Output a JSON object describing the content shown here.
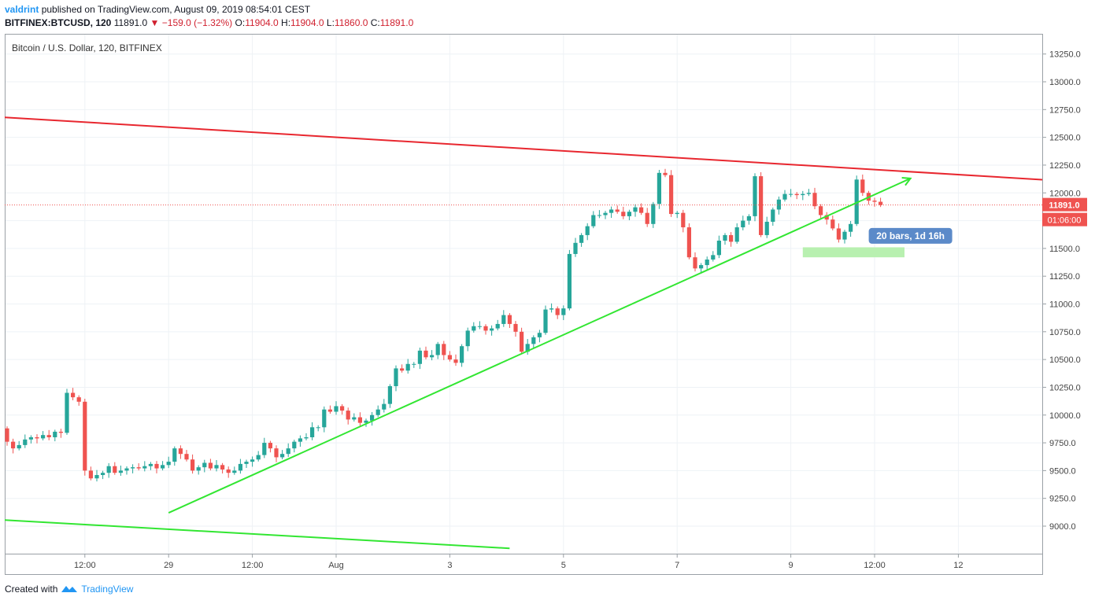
{
  "header": {
    "author": "valdrint",
    "published_text": "published on TradingView.com, August 09, 2019 08:54:01 CEST",
    "symbol": "BITFINEX:BTCUSD, 120",
    "last_price": "11891.0",
    "change": "−159.0 (−1.32%)",
    "o_label": "O:",
    "o_value": "11904.0",
    "h_label": "H:",
    "h_value": "11904.0",
    "l_label": "L:",
    "l_value": "11860.0",
    "c_label": "C:",
    "c_value": "11891.0"
  },
  "chart_data": {
    "type": "candlestick",
    "title": "Bitcoin / U.S. Dollar, 120, BITFINEX",
    "interval": "120",
    "ylim": [
      8800,
      13450
    ],
    "y_ticks": [
      9000,
      9250,
      9500,
      9750,
      10000,
      10250,
      10500,
      10750,
      11000,
      11250,
      11500,
      11750,
      12000,
      12250,
      12500,
      12750,
      13000,
      13250
    ],
    "y_tick_labels": [
      "9000.0",
      "9250.0",
      "9500.0",
      "9750.0",
      "10000.0",
      "10250.0",
      "10500.0",
      "10750.0",
      "11000.0",
      "11250.0",
      "11500.0",
      "11750.0",
      "12000.0",
      "12250.0",
      "12500.0",
      "12750.0",
      "13000.0",
      "13250.0"
    ],
    "x_tick_labels": [
      "12:00",
      "29",
      "12:00",
      "Aug",
      "3",
      "5",
      "7",
      "9",
      "12:00",
      "12"
    ],
    "x_tick_bars": [
      13,
      27,
      41,
      55,
      74,
      93,
      112,
      131,
      145,
      159
    ],
    "total_bar_slots": 165,
    "candle_closes": [
      9760,
      9700,
      9730,
      9780,
      9800,
      9790,
      9820,
      9800,
      9850,
      9840,
      10200,
      10160,
      10120,
      9500,
      9430,
      9460,
      9480,
      9540,
      9480,
      9500,
      9520,
      9530,
      9520,
      9540,
      9560,
      9520,
      9550,
      9580,
      9700,
      9650,
      9600,
      9500,
      9530,
      9570,
      9520,
      9550,
      9510,
      9480,
      9500,
      9560,
      9580,
      9600,
      9640,
      9750,
      9700,
      9620,
      9650,
      9700,
      9760,
      9790,
      9800,
      9890,
      9890,
      10050,
      10030,
      10080,
      10040,
      9960,
      9980,
      9930,
      9950,
      10000,
      10050,
      10100,
      10260,
      10420,
      10400,
      10460,
      10460,
      10580,
      10520,
      10540,
      10640,
      10540,
      10500,
      10470,
      10620,
      10760,
      10800,
      10800,
      10760,
      10780,
      10820,
      10900,
      10820,
      10750,
      10570,
      10640,
      10700,
      10740,
      10950,
      10960,
      10900,
      10960,
      11450,
      11550,
      11620,
      11700,
      11800,
      11800,
      11820,
      11850,
      11830,
      11790,
      11830,
      11870,
      11820,
      11720,
      11900,
      12180,
      12160,
      11810,
      11820,
      11690,
      11420,
      11320,
      11350,
      11400,
      11440,
      11570,
      11620,
      11560,
      11690,
      11750,
      11790,
      12150,
      11620,
      11740,
      11850,
      11940,
      11990,
      11990,
      11980,
      11990,
      12000,
      11880,
      11800,
      11760,
      11680,
      11580,
      11650,
      11720,
      12120,
      12000,
      11930,
      11920,
      11891
    ],
    "last_price": 11891.0,
    "last_price_label": "11891.0",
    "countdown_label": "01:06:00",
    "series": [
      {
        "name": "Resistance line",
        "color": "#e8272f",
        "points": [
          {
            "bar": 0,
            "y": 12680
          },
          {
            "bar": 165,
            "y": 12145
          }
        ]
      },
      {
        "name": "Ascending support",
        "color": "#32e632",
        "points": [
          {
            "bar": 27,
            "y": 9120
          },
          {
            "bar": 151,
            "y": 12130
          }
        ]
      },
      {
        "name": "Lower channel line",
        "color": "#32e632",
        "points": [
          {
            "bar": 0,
            "y": 9055
          },
          {
            "bar": 84,
            "y": 8800
          }
        ]
      }
    ],
    "annotations": [
      {
        "text": "20 bars, 1d 16h",
        "bar": 151,
        "y": 11620
      }
    ],
    "projection_range": {
      "from_bar": 133,
      "to_bar": 150,
      "y_low": 11420,
      "y_high": 11510
    }
  },
  "colors": {
    "up": "#26a69a",
    "down": "#ef5350",
    "grid": "#eef2f6",
    "axis_text": "#444444",
    "price_label_bg": "#ef5350",
    "annotation_bg": "#5b8ac9",
    "projection_fill": "#b8f0b0"
  },
  "footer": {
    "created_with": "Created with",
    "brand": "TradingView"
  }
}
